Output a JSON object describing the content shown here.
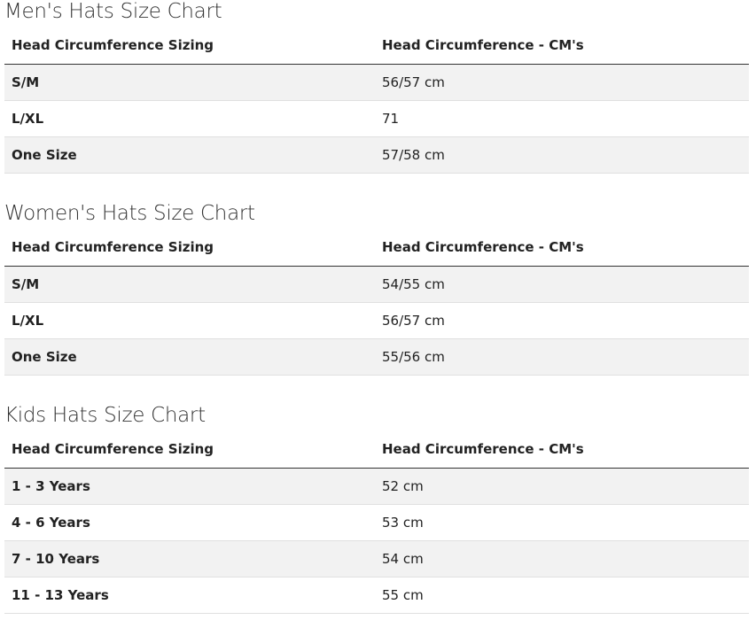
{
  "sections": [
    {
      "title": "Men's Hats Size Chart",
      "table": {
        "headers": [
          "Head Circumference Sizing",
          "Head Circumference - CM's"
        ],
        "rows": [
          [
            "S/M",
            "56/57 cm"
          ],
          [
            "L/XL",
            "71"
          ],
          [
            "One Size",
            "57/58 cm"
          ]
        ]
      }
    },
    {
      "title": "Women's Hats Size Chart",
      "table": {
        "headers": [
          "Head Circumference Sizing",
          "Head Circumference - CM's"
        ],
        "rows": [
          [
            "S/M",
            "54/55 cm"
          ],
          [
            "L/XL",
            "56/57 cm"
          ],
          [
            "One Size",
            "55/56 cm"
          ]
        ]
      }
    },
    {
      "title": "Kids Hats Size Chart",
      "table": {
        "headers": [
          "Head Circumference Sizing",
          "Head Circumference - CM's"
        ],
        "rows": [
          [
            "1 - 3 Years",
            "52 cm"
          ],
          [
            "4 - 6 Years",
            "53 cm"
          ],
          [
            "7 - 10 Years",
            "54 cm"
          ],
          [
            "11 - 13 Years",
            "55 cm"
          ]
        ]
      }
    }
  ]
}
